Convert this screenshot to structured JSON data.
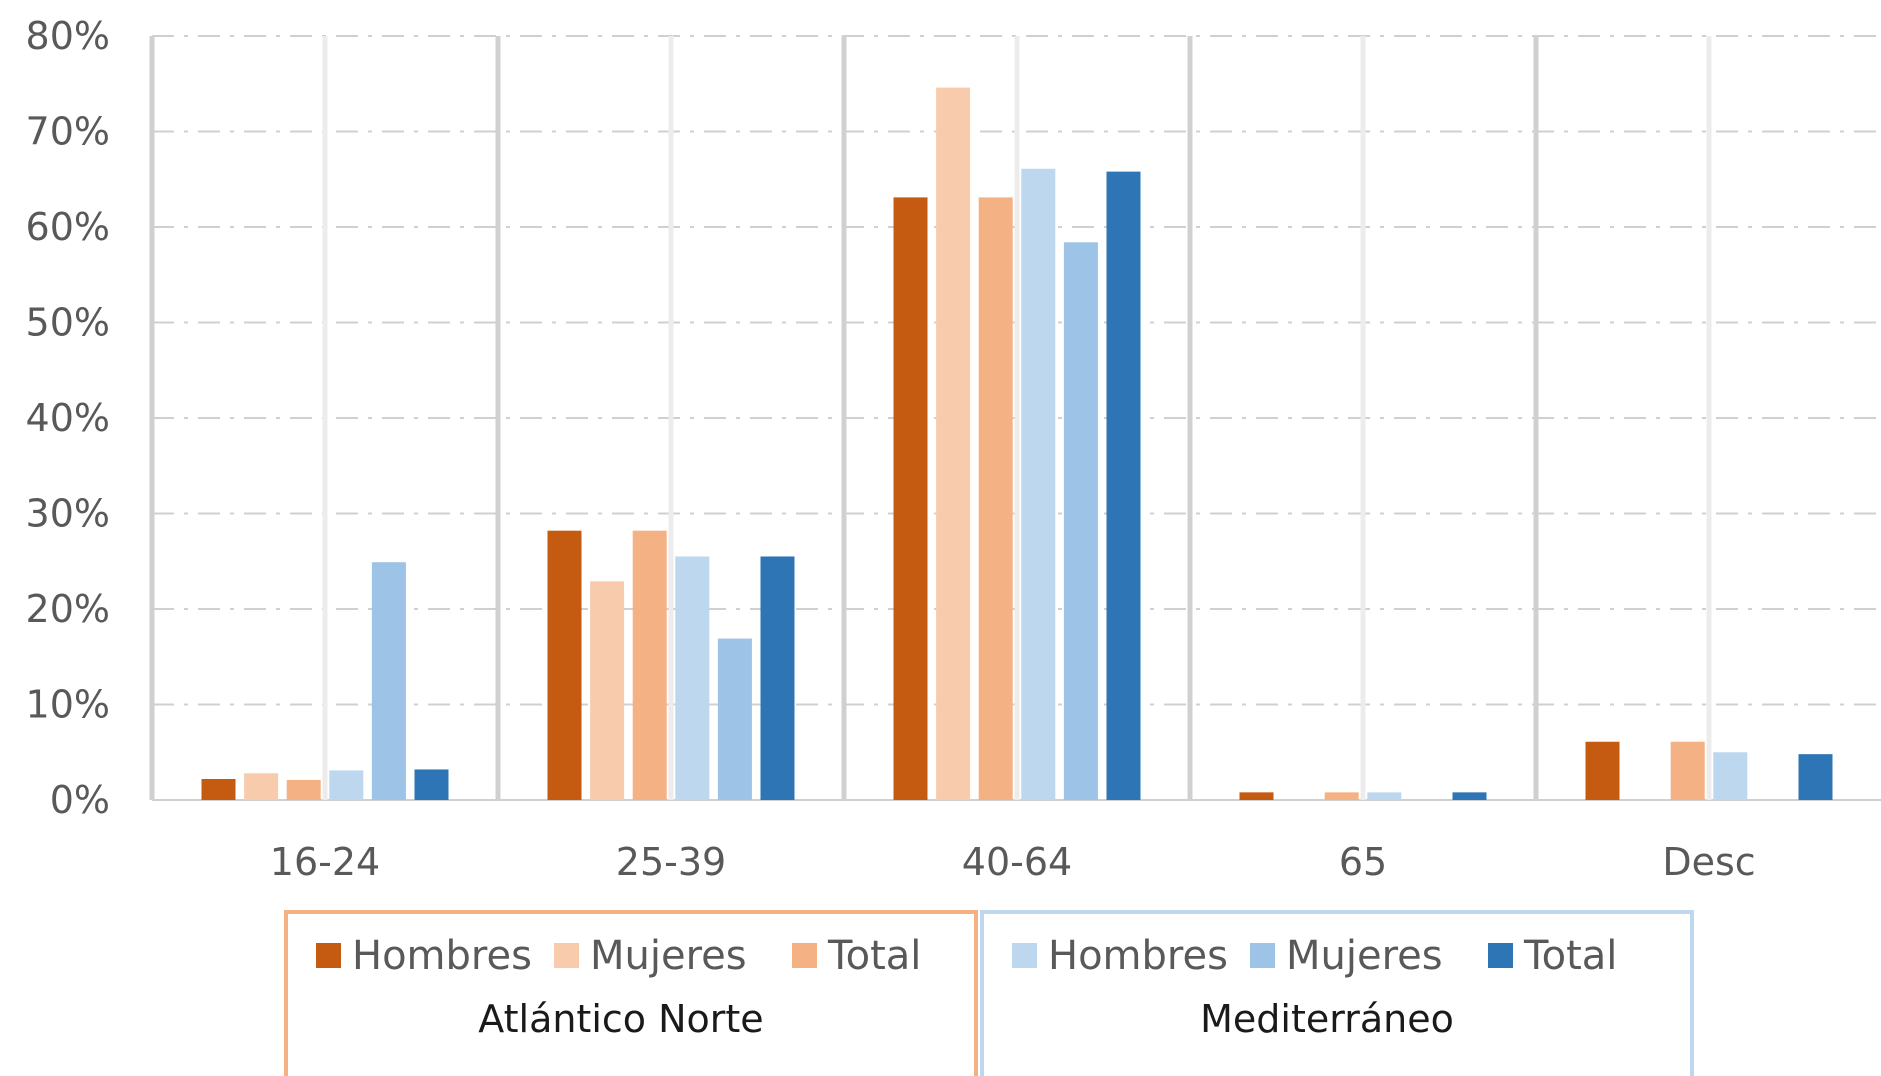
{
  "chart_data": {
    "type": "bar",
    "categories": [
      "16-24",
      "25-39",
      "40-64",
      "65",
      "Desc"
    ],
    "ylim": [
      0,
      80
    ],
    "y_ticks": [
      0,
      10,
      20,
      30,
      40,
      50,
      60,
      70,
      80
    ],
    "y_tick_labels": [
      "0%",
      "10%",
      "20%",
      "30%",
      "40%",
      "50%",
      "60%",
      "70%",
      "80%"
    ],
    "grid": true,
    "legend_position": "bottom",
    "legend_groups": [
      {
        "title": "Atlántico Norte",
        "entries": [
          "Hombres",
          "Mujeres",
          "Total"
        ]
      },
      {
        "title": "Mediterráneo",
        "entries": [
          "Hombres",
          "Mujeres",
          "Total"
        ]
      }
    ],
    "series": [
      {
        "name": "Hombres",
        "group": "Atlántico Norte",
        "color": "#c55a11",
        "values": [
          2.2,
          28.2,
          63.1,
          0.8,
          6.1
        ]
      },
      {
        "name": "Mujeres",
        "group": "Atlántico Norte",
        "color": "#f8cbad",
        "values": [
          2.8,
          22.9,
          74.6,
          0.0,
          0.0
        ]
      },
      {
        "name": "Total",
        "group": "Atlántico Norte",
        "color": "#f4b183",
        "values": [
          2.1,
          28.2,
          63.1,
          0.8,
          6.1
        ]
      },
      {
        "name": "Hombres",
        "group": "Mediterráneo",
        "color": "#bdd7ee",
        "values": [
          3.1,
          25.5,
          66.1,
          0.8,
          5.0
        ]
      },
      {
        "name": "Mujeres",
        "group": "Mediterráneo",
        "color": "#9dc3e6",
        "values": [
          24.9,
          16.9,
          58.4,
          0.0,
          0.0
        ]
      },
      {
        "name": "Total",
        "group": "Mediterráneo",
        "color": "#2e75b6",
        "values": [
          3.2,
          25.5,
          65.8,
          0.8,
          4.8
        ]
      }
    ],
    "legend_border_colors": [
      "#f4b183",
      "#bdd7ee"
    ]
  }
}
